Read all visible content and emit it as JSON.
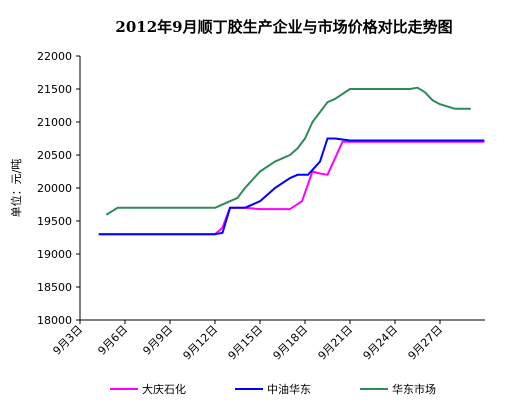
{
  "chart_data": {
    "type": "line",
    "title": "2012年9月顺丁胶生产企业与市场价格对比走势图",
    "xlabel": "",
    "ylabel": "单位：元/吨",
    "ylim": [
      18000,
      22000
    ],
    "yticks": [
      18000,
      18500,
      19000,
      19500,
      20000,
      20500,
      21000,
      21500,
      22000
    ],
    "xlim": [
      3,
      30
    ],
    "xticks": [
      {
        "x": 3,
        "label": "9月3日"
      },
      {
        "x": 6,
        "label": "9月6日"
      },
      {
        "x": 9,
        "label": "9月9日"
      },
      {
        "x": 12,
        "label": "9月12日"
      },
      {
        "x": 15,
        "label": "9月15日"
      },
      {
        "x": 18,
        "label": "9月18日"
      },
      {
        "x": 21,
        "label": "9月21日"
      },
      {
        "x": 24,
        "label": "9月24日"
      },
      {
        "x": 27,
        "label": "9月27日"
      }
    ],
    "grid": false,
    "legend": "bottom",
    "series": [
      {
        "name": "大庆石化",
        "color": "#ff00ff",
        "points": [
          [
            4.3,
            19300
          ],
          [
            12.0,
            19300
          ],
          [
            12.5,
            19400
          ],
          [
            13.0,
            19700
          ],
          [
            14.0,
            19700
          ],
          [
            15.0,
            19680
          ],
          [
            16.0,
            19680
          ],
          [
            17.0,
            19680
          ],
          [
            17.8,
            19800
          ],
          [
            18.5,
            20250
          ],
          [
            19.0,
            20220
          ],
          [
            19.5,
            20200
          ],
          [
            20.0,
            20450
          ],
          [
            20.5,
            20700
          ],
          [
            21.0,
            20700
          ],
          [
            22.0,
            20700
          ],
          [
            24.0,
            20700
          ],
          [
            26.0,
            20700
          ],
          [
            28.0,
            20700
          ],
          [
            29.9,
            20700
          ]
        ]
      },
      {
        "name": "中油华东",
        "color": "#0000ff",
        "points": [
          [
            4.3,
            19300
          ],
          [
            12.0,
            19300
          ],
          [
            12.5,
            19320
          ],
          [
            13.0,
            19700
          ],
          [
            14.0,
            19700
          ],
          [
            15.0,
            19800
          ],
          [
            16.0,
            20000
          ],
          [
            17.0,
            20150
          ],
          [
            17.5,
            20200
          ],
          [
            18.2,
            20200
          ],
          [
            19.0,
            20400
          ],
          [
            19.5,
            20750
          ],
          [
            20.0,
            20750
          ],
          [
            21.0,
            20720
          ],
          [
            22.0,
            20720
          ],
          [
            24.0,
            20720
          ],
          [
            26.0,
            20720
          ],
          [
            28.0,
            20720
          ],
          [
            29.9,
            20720
          ]
        ]
      },
      {
        "name": "华东市场",
        "color": "#2e8b57",
        "points": [
          [
            4.8,
            19600
          ],
          [
            5.5,
            19700
          ],
          [
            7.0,
            19700
          ],
          [
            9.0,
            19700
          ],
          [
            12.0,
            19700
          ],
          [
            13.0,
            19800
          ],
          [
            13.5,
            19850
          ],
          [
            14.0,
            20000
          ],
          [
            15.0,
            20250
          ],
          [
            16.0,
            20400
          ],
          [
            17.0,
            20500
          ],
          [
            17.5,
            20600
          ],
          [
            18.0,
            20750
          ],
          [
            18.5,
            21000
          ],
          [
            19.0,
            21150
          ],
          [
            19.5,
            21300
          ],
          [
            20.0,
            21350
          ],
          [
            21.0,
            21500
          ],
          [
            22.0,
            21500
          ],
          [
            24.0,
            21500
          ],
          [
            25.0,
            21500
          ],
          [
            25.5,
            21520
          ],
          [
            26.0,
            21450
          ],
          [
            26.5,
            21330
          ],
          [
            27.0,
            21270
          ],
          [
            28.0,
            21200
          ],
          [
            28.5,
            21200
          ],
          [
            29.0,
            21200
          ]
        ]
      }
    ]
  }
}
